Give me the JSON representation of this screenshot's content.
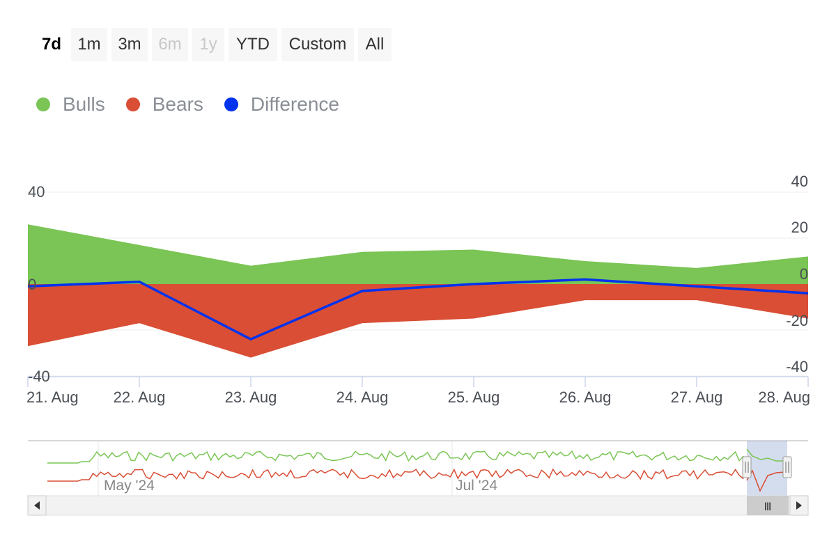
{
  "range_selector": {
    "buttons": [
      {
        "label": "7d",
        "state": "active"
      },
      {
        "label": "1m",
        "state": "enabled"
      },
      {
        "label": "3m",
        "state": "enabled"
      },
      {
        "label": "6m",
        "state": "disabled"
      },
      {
        "label": "1y",
        "state": "disabled"
      },
      {
        "label": "YTD",
        "state": "enabled"
      },
      {
        "label": "Custom",
        "state": "enabled"
      },
      {
        "label": "All",
        "state": "enabled"
      }
    ]
  },
  "legend": {
    "items": [
      {
        "label": "Bulls",
        "color": "#7ac555"
      },
      {
        "label": "Bears",
        "color": "#d94e35"
      },
      {
        "label": "Difference",
        "color": "#0033ee"
      }
    ]
  },
  "chart_data": {
    "type": "area",
    "categories": [
      "21. Aug",
      "22. Aug",
      "23. Aug",
      "24. Aug",
      "25. Aug",
      "26. Aug",
      "27. Aug",
      "28. Aug"
    ],
    "series": [
      {
        "name": "Bulls",
        "type": "area",
        "color": "#7ac555",
        "values": [
          26,
          17,
          8,
          14,
          15,
          10,
          7,
          12
        ]
      },
      {
        "name": "Bears",
        "type": "area",
        "color": "#d94e35",
        "values": [
          -27,
          -17,
          -32,
          -17,
          -15,
          -7,
          -7,
          -15
        ]
      },
      {
        "name": "Difference",
        "type": "line",
        "color": "#0033ee",
        "values": [
          -1,
          1,
          -24,
          -3,
          0,
          2,
          -1,
          -4
        ]
      }
    ],
    "left_axis": {
      "ticks": [
        "40",
        "0",
        "-40"
      ],
      "range": [
        -40,
        40
      ]
    },
    "right_axis": {
      "ticks": [
        "40",
        "20",
        "0",
        "-20",
        "-40"
      ],
      "range": [
        -40,
        40
      ]
    },
    "grid": true,
    "legend_position": "top-left"
  },
  "navigator": {
    "labels": [
      "May '24",
      "Jul '24"
    ],
    "handle_glyph": "Ⅲ"
  }
}
